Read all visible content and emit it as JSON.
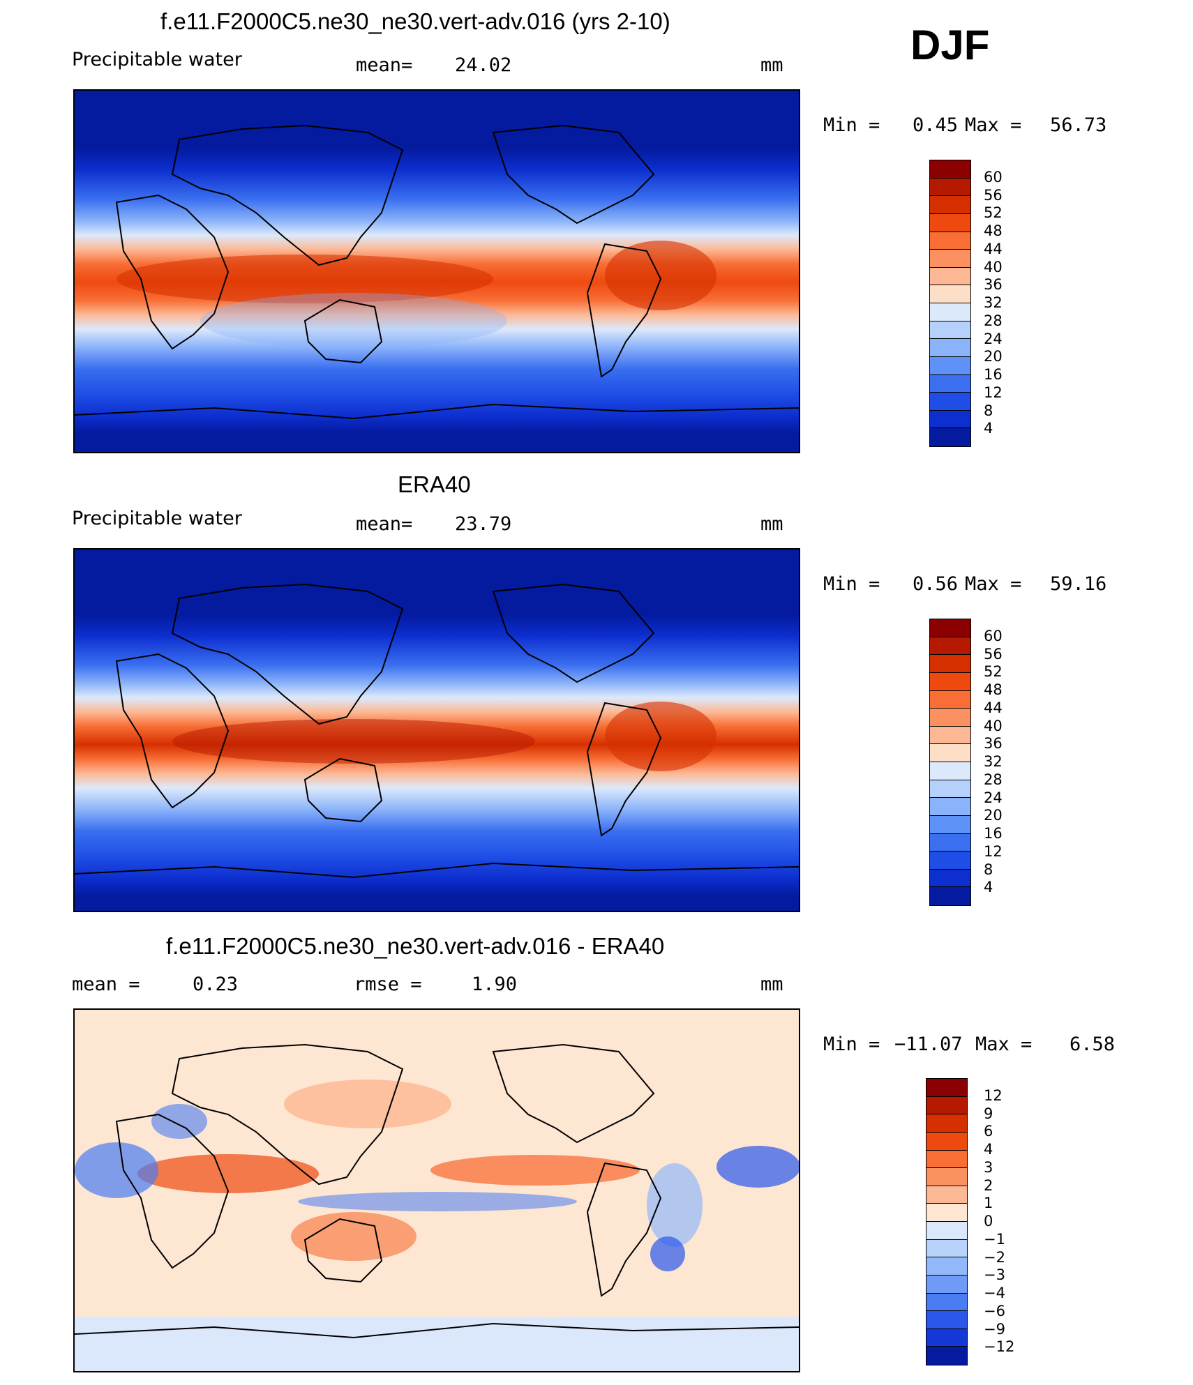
{
  "season": "DJF",
  "panels": [
    {
      "title": "f.e11.F2000C5.ne30_ne30.vert-adv.016 (yrs 2-10)",
      "left_label": "Precipitable  water",
      "mean_label": "mean=",
      "mean_value": "24.02",
      "units": "mm",
      "min_label": "Min  =",
      "min_value": "0.45",
      "max_label": "Max  =",
      "max_value": "56.73",
      "colorbar": {
        "labels": [
          "60",
          "56",
          "52",
          "48",
          "44",
          "40",
          "36",
          "32",
          "28",
          "24",
          "20",
          "16",
          "12",
          "8",
          "4"
        ],
        "colors": [
          "#8b0000",
          "#b51a00",
          "#d63000",
          "#ee4a10",
          "#f86e35",
          "#fb9060",
          "#fcb894",
          "#fddfc8",
          "#dce9fb",
          "#b4d0fb",
          "#8bb3fa",
          "#5f92f7",
          "#3a6ff0",
          "#1f4ee6",
          "#0d2fcf",
          "#041a9f"
        ]
      },
      "chart_data": {
        "type": "heatmap",
        "title": "f.e11.F2000C5.ne30_ne30.vert-adv.016 (yrs 2-10)",
        "field": "Precipitable  water",
        "units": "mm",
        "mean": 24.02,
        "min": 0.45,
        "max": 56.73,
        "contour_levels": [
          4,
          8,
          12,
          16,
          20,
          24,
          28,
          32,
          36,
          40,
          44,
          48,
          52,
          56,
          60
        ]
      }
    },
    {
      "title": "ERA40",
      "left_label": "Precipitable  water",
      "mean_label": "mean=",
      "mean_value": "23.79",
      "units": "mm",
      "min_label": "Min  =",
      "min_value": "0.56",
      "max_label": "Max  =",
      "max_value": "59.16",
      "colorbar": {
        "labels": [
          "60",
          "56",
          "52",
          "48",
          "44",
          "40",
          "36",
          "32",
          "28",
          "24",
          "20",
          "16",
          "12",
          "8",
          "4"
        ],
        "colors": [
          "#8b0000",
          "#b51a00",
          "#d63000",
          "#ee4a10",
          "#f86e35",
          "#fb9060",
          "#fcb894",
          "#fddfc8",
          "#dce9fb",
          "#b4d0fb",
          "#8bb3fa",
          "#5f92f7",
          "#3a6ff0",
          "#1f4ee6",
          "#0d2fcf",
          "#041a9f"
        ]
      },
      "chart_data": {
        "type": "heatmap",
        "title": "ERA40",
        "field": "Precipitable  water",
        "units": "mm",
        "mean": 23.79,
        "min": 0.56,
        "max": 59.16,
        "contour_levels": [
          4,
          8,
          12,
          16,
          20,
          24,
          28,
          32,
          36,
          40,
          44,
          48,
          52,
          56,
          60
        ]
      }
    },
    {
      "title": "f.e11.F2000C5.ne30_ne30.vert-adv.016 - ERA40",
      "left_label": "mean  =",
      "left_value": "0.23",
      "rmse_label": "rmse  =",
      "rmse_value": "1.90",
      "units": "mm",
      "min_label": "Min  =",
      "min_value": "−11.07",
      "max_label": "Max  =",
      "max_value": "6.58",
      "colorbar": {
        "labels": [
          "12",
          "9",
          "6",
          "4",
          "3",
          "2",
          "1",
          "0",
          "−1",
          "−2",
          "−3",
          "−4",
          "−6",
          "−9",
          "−12"
        ],
        "colors": [
          "#8b0000",
          "#b51a00",
          "#d63000",
          "#ee4a10",
          "#f86e35",
          "#fb9060",
          "#fcb894",
          "#fde6d2",
          "#dbe8fb",
          "#b8d2fb",
          "#93b8fa",
          "#6f9bf7",
          "#4a7cf2",
          "#2b57ea",
          "#1438d6",
          "#041a9f"
        ]
      },
      "chart_data": {
        "type": "heatmap",
        "title": "f.e11.F2000C5.ne30_ne30.vert-adv.016 - ERA40",
        "units": "mm",
        "mean": 0.23,
        "rmse": 1.9,
        "min": -11.07,
        "max": 6.58,
        "contour_levels": [
          -12,
          -9,
          -6,
          -4,
          -3,
          -2,
          -1,
          0,
          1,
          2,
          3,
          4,
          6,
          9,
          12
        ]
      }
    }
  ]
}
